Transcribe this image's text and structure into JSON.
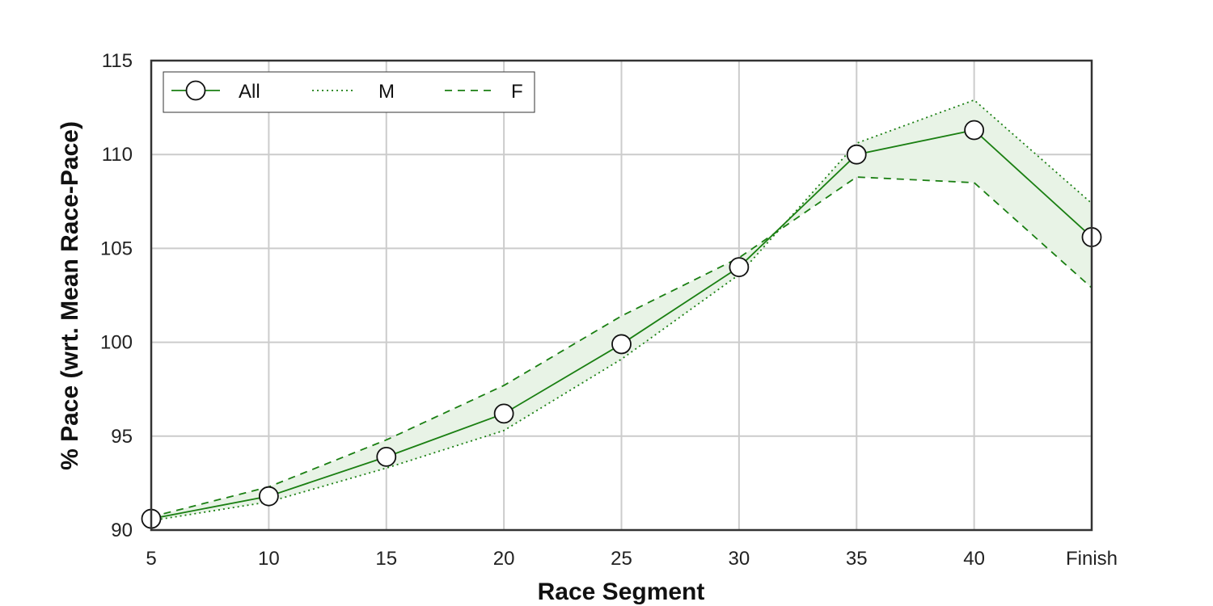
{
  "chart_data": {
    "type": "line",
    "categories": [
      "5",
      "10",
      "15",
      "20",
      "25",
      "30",
      "35",
      "40",
      "Finish"
    ],
    "series": [
      {
        "name": "All",
        "style": "solid-with-circle-markers",
        "values": [
          90.6,
          91.8,
          93.9,
          96.2,
          99.9,
          104.0,
          110.0,
          111.3,
          105.6
        ]
      },
      {
        "name": "M",
        "style": "dotted",
        "values": [
          90.5,
          91.5,
          93.3,
          95.3,
          99.1,
          103.6,
          110.6,
          112.9,
          107.4
        ]
      },
      {
        "name": "F",
        "style": "dashed",
        "values": [
          90.7,
          92.3,
          94.8,
          97.7,
          101.4,
          104.5,
          108.8,
          108.5,
          102.9
        ]
      }
    ],
    "band": {
      "between": [
        "M",
        "F"
      ],
      "fill": "#e8f3e6"
    },
    "xlabel": "Race Segment",
    "ylabel": "% Pace (wrt. Mean Race-Pace)",
    "ylim": [
      90,
      115
    ],
    "yticks": [
      "90",
      "95",
      "100",
      "105",
      "110",
      "115"
    ],
    "grid": true,
    "legend": {
      "placement": "top-left",
      "columns": 3
    },
    "colors": {
      "line": "#1a7f12",
      "grid": "#cccccc",
      "frame": "#333333",
      "marker_fill": "#ffffff",
      "marker_stroke": "#111111"
    }
  }
}
